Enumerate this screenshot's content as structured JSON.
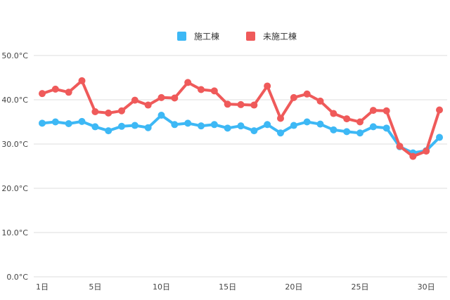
{
  "chart_data": {
    "type": "line",
    "title": "",
    "xlabel": "",
    "ylabel": "",
    "legend_position": "top-center",
    "grid": true,
    "ylim": [
      0,
      50
    ],
    "y_ticks": [
      "0.0°C",
      "10.0°C",
      "20.0°C",
      "30.0°C",
      "40.0°C",
      "50.0°C"
    ],
    "x": [
      1,
      2,
      3,
      4,
      5,
      6,
      7,
      8,
      9,
      10,
      11,
      12,
      13,
      14,
      15,
      16,
      17,
      18,
      19,
      20,
      21,
      22,
      23,
      24,
      25,
      26,
      27,
      28,
      29,
      30,
      31
    ],
    "x_ticks": [
      {
        "day": 1,
        "label": "1日"
      },
      {
        "day": 5,
        "label": "5日"
      },
      {
        "day": 10,
        "label": "10日"
      },
      {
        "day": 15,
        "label": "15日"
      },
      {
        "day": 20,
        "label": "20日"
      },
      {
        "day": 25,
        "label": "25日"
      },
      {
        "day": 30,
        "label": "30日"
      }
    ],
    "series": [
      {
        "name": "施工棟",
        "color": "#3db8f5",
        "values": [
          34.7,
          35.0,
          34.6,
          35.1,
          33.9,
          33.0,
          34.0,
          34.2,
          33.7,
          36.5,
          34.4,
          34.7,
          34.1,
          34.4,
          33.6,
          34.1,
          33.0,
          34.4,
          32.5,
          34.2,
          35.0,
          34.5,
          33.2,
          32.8,
          32.5,
          33.9,
          33.6,
          29.4,
          28.0,
          28.5,
          31.5
        ]
      },
      {
        "name": "未施工棟",
        "color": "#ef5a5a",
        "values": [
          41.4,
          42.4,
          41.7,
          44.3,
          37.3,
          37.0,
          37.5,
          39.9,
          38.8,
          40.5,
          40.4,
          43.9,
          42.3,
          42.0,
          39.0,
          38.9,
          38.8,
          43.1,
          35.8,
          40.5,
          41.3,
          39.7,
          36.9,
          35.7,
          35.0,
          37.6,
          37.5,
          29.5,
          27.2,
          28.4,
          37.7
        ]
      }
    ]
  }
}
